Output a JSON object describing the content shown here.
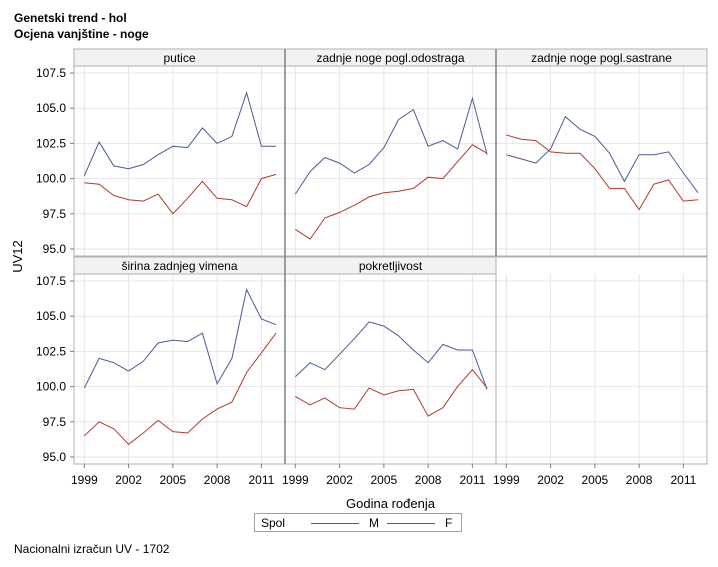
{
  "titles": {
    "line1": "Genetski trend - hol",
    "line2": "Ocjena vanjštine - noge"
  },
  "footer": "Nacionalni izračun UV - 1702",
  "legend": {
    "title": "Spol",
    "items": [
      {
        "name": "M",
        "color": "#4a5c94"
      },
      {
        "name": "F",
        "color": "#b23a2e"
      }
    ]
  },
  "chart_data": {
    "type": "line",
    "xlabel": "Godina rođenja",
    "ylabel": "UV12",
    "ylim": [
      94.5,
      108.0
    ],
    "yticks": [
      "95.0",
      "97.5",
      "100.0",
      "102.5",
      "105.0",
      "107.5"
    ],
    "xticks": [
      "1999",
      "2002",
      "2005",
      "2008",
      "2011"
    ],
    "x": [
      1999,
      2000,
      2001,
      2002,
      2003,
      2004,
      2005,
      2006,
      2007,
      2008,
      2009,
      2010,
      2011,
      2012
    ],
    "panels": [
      {
        "title": "putice",
        "series": [
          {
            "name": "M",
            "values": [
              100.2,
              102.6,
              100.9,
              100.7,
              101.0,
              101.7,
              102.3,
              102.2,
              103.6,
              102.5,
              103.0,
              106.1,
              102.3,
              102.3
            ]
          },
          {
            "name": "F",
            "values": [
              99.7,
              99.6,
              98.8,
              98.5,
              98.4,
              98.9,
              97.5,
              98.6,
              99.8,
              98.6,
              98.5,
              98.0,
              100.0,
              100.3
            ]
          }
        ]
      },
      {
        "title": "zadnje noge pogl.odostraga",
        "series": [
          {
            "name": "M",
            "values": [
              98.9,
              100.5,
              101.5,
              101.1,
              100.4,
              101.0,
              102.2,
              104.2,
              104.9,
              102.3,
              102.7,
              102.1,
              105.7,
              101.7
            ]
          },
          {
            "name": "F",
            "values": [
              96.4,
              95.7,
              97.2,
              97.6,
              98.1,
              98.7,
              99.0,
              99.1,
              99.3,
              100.1,
              100.0,
              101.2,
              102.4,
              101.8
            ]
          }
        ]
      },
      {
        "title": "zadnje noge pogl.sastrane",
        "series": [
          {
            "name": "M",
            "values": [
              101.7,
              101.4,
              101.1,
              102.1,
              104.4,
              103.5,
              103.0,
              101.8,
              99.8,
              101.7,
              101.7,
              101.9,
              100.4,
              99.0
            ]
          },
          {
            "name": "F",
            "values": [
              103.1,
              102.8,
              102.7,
              101.9,
              101.8,
              101.8,
              100.7,
              99.3,
              99.3,
              97.8,
              99.6,
              99.9,
              98.4,
              98.5
            ]
          }
        ]
      },
      {
        "title": "širina zadnjeg vimena",
        "series": [
          {
            "name": "M",
            "values": [
              99.9,
              102.0,
              101.7,
              101.1,
              101.8,
              103.1,
              103.3,
              103.2,
              103.8,
              100.2,
              102.0,
              106.9,
              104.8,
              104.4
            ]
          },
          {
            "name": "F",
            "values": [
              96.5,
              97.5,
              97.0,
              95.9,
              96.7,
              97.6,
              96.8,
              96.7,
              97.7,
              98.4,
              98.9,
              101.0,
              102.4,
              103.8
            ]
          }
        ]
      },
      {
        "title": "pokretljivost",
        "series": [
          {
            "name": "M",
            "values": [
              100.7,
              101.7,
              101.2,
              102.3,
              103.4,
              104.6,
              104.3,
              103.6,
              102.6,
              101.7,
              103.0,
              102.6,
              102.6,
              99.8
            ]
          },
          {
            "name": "F",
            "values": [
              99.3,
              98.7,
              99.2,
              98.5,
              98.4,
              99.9,
              99.4,
              99.7,
              99.8,
              97.9,
              98.5,
              100.0,
              101.2,
              99.9
            ]
          }
        ]
      }
    ]
  }
}
